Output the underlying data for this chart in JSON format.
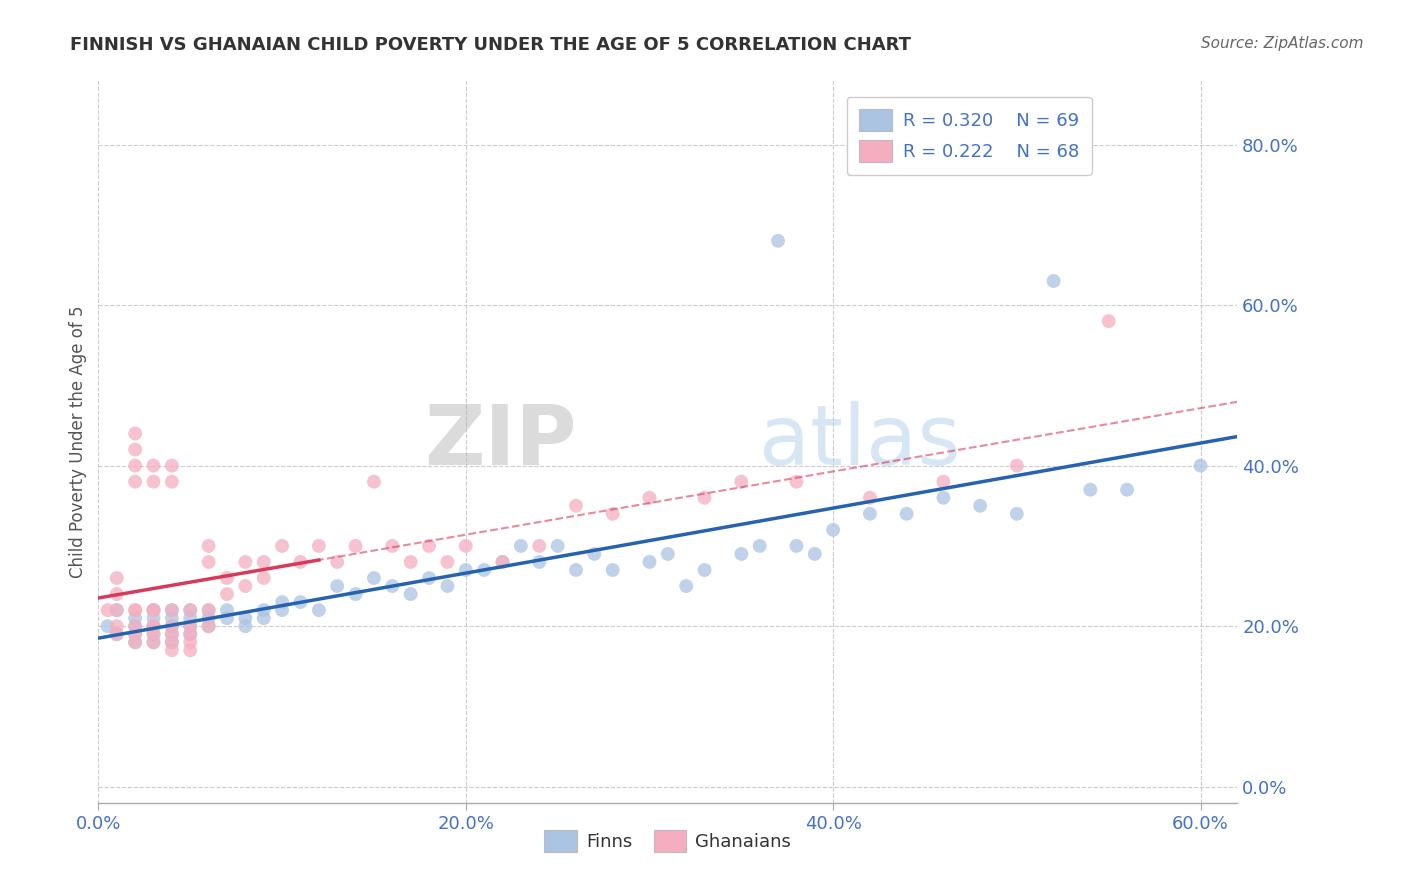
{
  "title": "FINNISH VS GHANAIAN CHILD POVERTY UNDER THE AGE OF 5 CORRELATION CHART",
  "source": "Source: ZipAtlas.com",
  "ylabel": "Child Poverty Under the Age of 5",
  "xlim": [
    0.0,
    0.62
  ],
  "ylim": [
    -0.02,
    0.88
  ],
  "legend_r_finn": "R = 0.320",
  "legend_n_finn": "N = 69",
  "legend_r_ghana": "R = 0.222",
  "legend_n_ghana": "N = 68",
  "finn_color": "#aac4e2",
  "ghana_color": "#f5aec0",
  "finn_line_color": "#2563b0",
  "ghana_line_color": "#d93a5a",
  "watermark_zip": "ZIP",
  "watermark_atlas": "atlas",
  "background_color": "#ffffff",
  "grid_color": "#cccccc",
  "title_color": "#333333",
  "axis_label_color": "#4472c4",
  "source_color": "#666666",
  "x_tick_vals": [
    0.0,
    0.2,
    0.4,
    0.6
  ],
  "y_tick_vals": [
    0.0,
    0.2,
    0.4,
    0.6,
    0.8
  ],
  "finns_x": [
    0.005,
    0.01,
    0.01,
    0.02,
    0.02,
    0.02,
    0.02,
    0.03,
    0.03,
    0.03,
    0.03,
    0.03,
    0.04,
    0.04,
    0.04,
    0.04,
    0.04,
    0.05,
    0.05,
    0.05,
    0.05,
    0.06,
    0.06,
    0.06,
    0.07,
    0.07,
    0.08,
    0.08,
    0.09,
    0.09,
    0.1,
    0.1,
    0.11,
    0.12,
    0.13,
    0.14,
    0.15,
    0.16,
    0.17,
    0.18,
    0.19,
    0.2,
    0.21,
    0.22,
    0.23,
    0.24,
    0.25,
    0.26,
    0.27,
    0.28,
    0.3,
    0.31,
    0.32,
    0.33,
    0.35,
    0.36,
    0.37,
    0.38,
    0.39,
    0.4,
    0.42,
    0.44,
    0.46,
    0.48,
    0.5,
    0.52,
    0.54,
    0.56,
    0.6
  ],
  "finns_y": [
    0.2,
    0.19,
    0.22,
    0.2,
    0.19,
    0.21,
    0.18,
    0.19,
    0.21,
    0.2,
    0.22,
    0.18,
    0.2,
    0.21,
    0.19,
    0.22,
    0.18,
    0.21,
    0.2,
    0.19,
    0.22,
    0.21,
    0.2,
    0.22,
    0.22,
    0.21,
    0.21,
    0.2,
    0.22,
    0.21,
    0.23,
    0.22,
    0.23,
    0.22,
    0.25,
    0.24,
    0.26,
    0.25,
    0.24,
    0.26,
    0.25,
    0.27,
    0.27,
    0.28,
    0.3,
    0.28,
    0.3,
    0.27,
    0.29,
    0.27,
    0.28,
    0.29,
    0.25,
    0.27,
    0.29,
    0.3,
    0.68,
    0.3,
    0.29,
    0.32,
    0.34,
    0.34,
    0.36,
    0.35,
    0.34,
    0.63,
    0.37,
    0.37,
    0.4
  ],
  "ghanaians_x": [
    0.005,
    0.01,
    0.01,
    0.01,
    0.01,
    0.01,
    0.02,
    0.02,
    0.02,
    0.02,
    0.02,
    0.02,
    0.02,
    0.02,
    0.02,
    0.03,
    0.03,
    0.03,
    0.03,
    0.03,
    0.03,
    0.03,
    0.03,
    0.04,
    0.04,
    0.04,
    0.04,
    0.04,
    0.04,
    0.04,
    0.05,
    0.05,
    0.05,
    0.05,
    0.05,
    0.06,
    0.06,
    0.06,
    0.06,
    0.07,
    0.07,
    0.08,
    0.08,
    0.09,
    0.09,
    0.1,
    0.11,
    0.12,
    0.13,
    0.14,
    0.15,
    0.16,
    0.17,
    0.18,
    0.19,
    0.2,
    0.22,
    0.24,
    0.26,
    0.28,
    0.3,
    0.33,
    0.35,
    0.38,
    0.42,
    0.46,
    0.5,
    0.55
  ],
  "ghanaians_y": [
    0.22,
    0.2,
    0.22,
    0.24,
    0.26,
    0.19,
    0.22,
    0.44,
    0.42,
    0.4,
    0.38,
    0.2,
    0.22,
    0.19,
    0.18,
    0.4,
    0.38,
    0.22,
    0.2,
    0.19,
    0.22,
    0.2,
    0.18,
    0.4,
    0.38,
    0.22,
    0.2,
    0.19,
    0.18,
    0.17,
    0.22,
    0.2,
    0.19,
    0.18,
    0.17,
    0.3,
    0.28,
    0.22,
    0.2,
    0.26,
    0.24,
    0.28,
    0.25,
    0.28,
    0.26,
    0.3,
    0.28,
    0.3,
    0.28,
    0.3,
    0.38,
    0.3,
    0.28,
    0.3,
    0.28,
    0.3,
    0.28,
    0.3,
    0.35,
    0.34,
    0.36,
    0.36,
    0.38,
    0.38,
    0.36,
    0.38,
    0.4,
    0.58
  ]
}
